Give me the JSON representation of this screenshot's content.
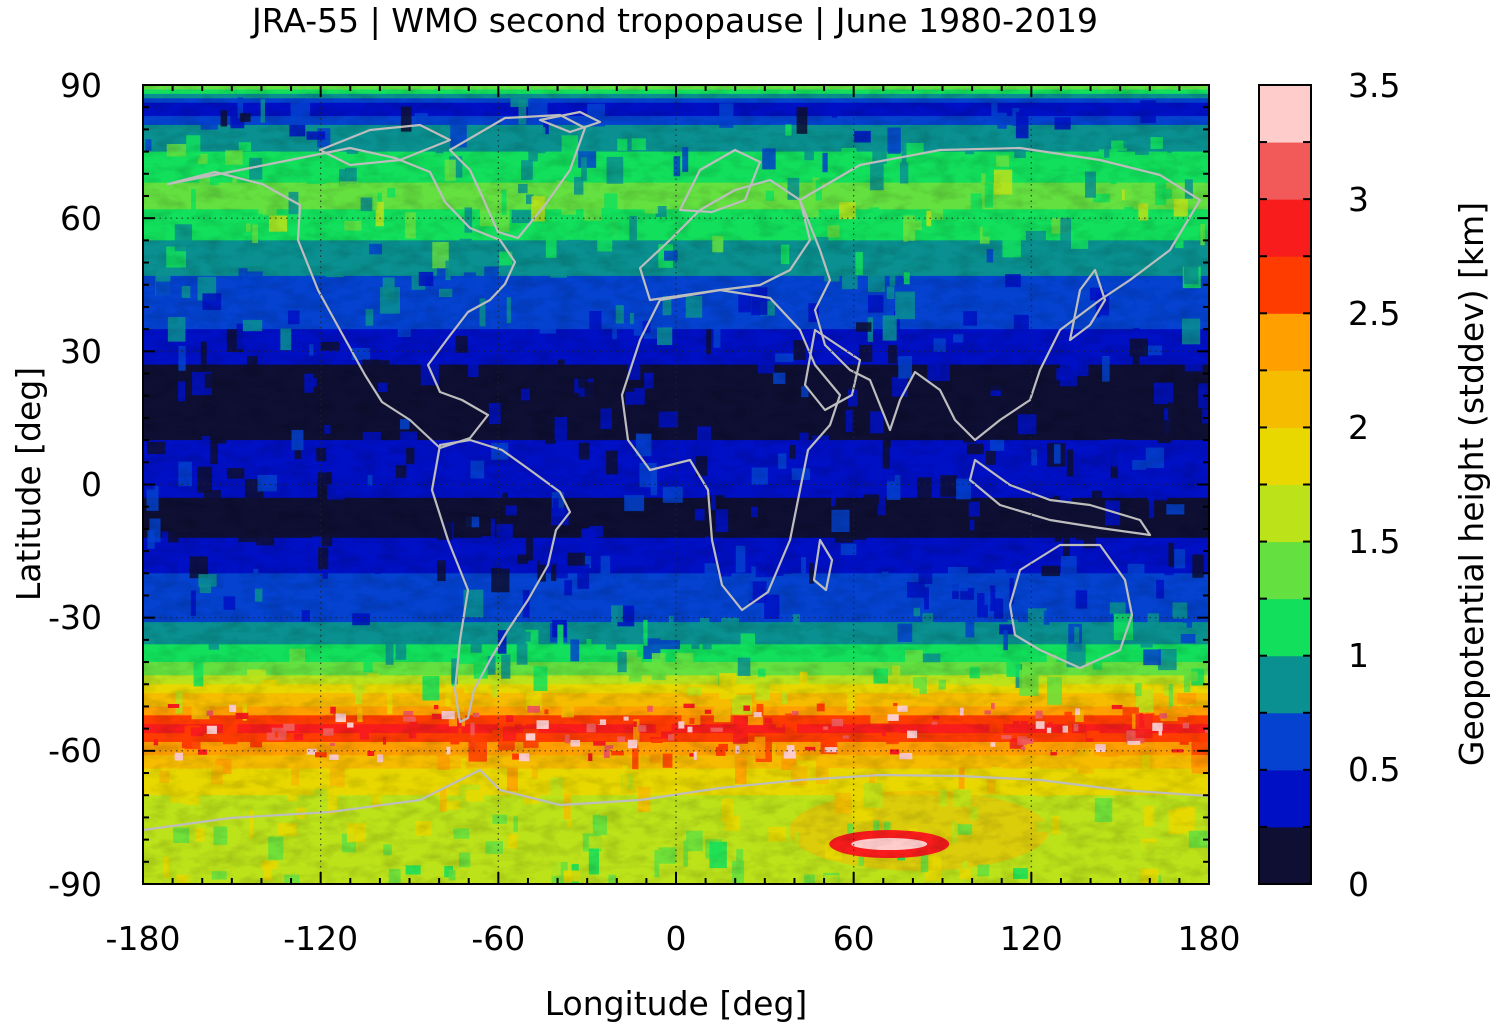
{
  "title": "JRA-55 | WMO second tropopause | June 1980-2019",
  "chart_data": {
    "type": "heatmap",
    "title": "JRA-55 | WMO second tropopause | June 1980-2019",
    "xlabel": "Longitude [deg]",
    "ylabel": "Latitude [deg]",
    "xlim": [
      -180,
      180
    ],
    "ylim": [
      -90,
      90
    ],
    "x_ticks": [
      -180,
      -120,
      -60,
      0,
      60,
      120,
      180
    ],
    "y_ticks": [
      90,
      60,
      30,
      0,
      -30,
      -60,
      -90
    ],
    "x_tick_labels": [
      "-180",
      "-120",
      "-60",
      "0",
      "60",
      "120",
      "180"
    ],
    "y_tick_labels": [
      "90",
      "60",
      "30",
      "0",
      "-30",
      "-60",
      "-90"
    ],
    "grid": true,
    "coastlines": true,
    "colorbar": {
      "label": "Geopotential height (stddev) [km]",
      "min": 0,
      "max": 3.5,
      "step": 0.25,
      "tick_values": [
        0,
        0.5,
        1,
        1.5,
        2,
        2.5,
        3,
        3.5
      ],
      "tick_labels": [
        "0",
        "0.5",
        "1",
        "1.5",
        "2",
        "2.5",
        "3",
        "3.5"
      ],
      "colors": [
        "#0e0f33",
        "#0010c4",
        "#0442cf",
        "#0a9090",
        "#12e05c",
        "#64e040",
        "#bce21a",
        "#e8d800",
        "#f5bc00",
        "#ffa000",
        "#ff3c00",
        "#f81c1c",
        "#f25a5a",
        "#ffcccc"
      ]
    },
    "zonal_profile": {
      "latitude": [
        90,
        85,
        80,
        75,
        70,
        65,
        60,
        55,
        50,
        45,
        40,
        35,
        30,
        25,
        20,
        15,
        10,
        5,
        0,
        -5,
        -10,
        -15,
        -20,
        -25,
        -30,
        -35,
        -40,
        -45,
        -50,
        -55,
        -60,
        -65,
        -70,
        -75,
        -80,
        -85,
        -90
      ],
      "stddev_km": [
        1.4,
        0.3,
        0.8,
        1.0,
        1.2,
        1.3,
        1.2,
        1.0,
        0.8,
        0.7,
        0.6,
        0.5,
        0.35,
        0.2,
        0.15,
        0.2,
        0.25,
        0.4,
        0.35,
        0.2,
        0.15,
        0.35,
        0.5,
        0.6,
        0.7,
        0.9,
        1.25,
        1.7,
        2.3,
        2.9,
        2.3,
        1.9,
        1.75,
        1.65,
        1.55,
        1.5,
        1.5
      ]
    },
    "annotations": [
      {
        "text": "maximum near 60-85E, 80S",
        "lon": 72,
        "lat": -81,
        "stddev_km": 3.4
      }
    ]
  }
}
